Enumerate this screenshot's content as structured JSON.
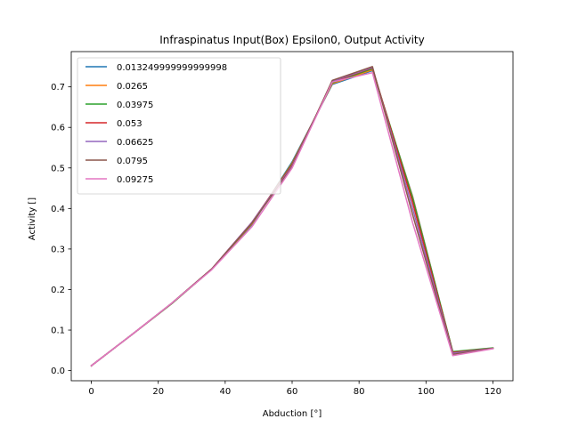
{
  "chart_data": {
    "type": "line",
    "title": "Infraspinatus Input(Box) Epsilon0, Output Activity",
    "xlabel": "Abduction [°]",
    "ylabel": "Activity []",
    "xlim": [
      -6,
      126
    ],
    "ylim": [
      -0.025,
      0.787
    ],
    "xticks": [
      0,
      20,
      40,
      60,
      80,
      100,
      120
    ],
    "yticks": [
      0.0,
      0.1,
      0.2,
      0.3,
      0.4,
      0.5,
      0.6,
      0.7
    ],
    "xtick_labels": [
      "0",
      "20",
      "40",
      "60",
      "80",
      "100",
      "120"
    ],
    "ytick_labels": [
      "0.0",
      "0.1",
      "0.2",
      "0.3",
      "0.4",
      "0.5",
      "0.6",
      "0.7"
    ],
    "grid": false,
    "legend_position": "top-left",
    "x": [
      0,
      12,
      24,
      36,
      48,
      60,
      72,
      84,
      96,
      108,
      120
    ],
    "series": [
      {
        "name": "0.013249999999999998",
        "color": "#1f77b4",
        "values": [
          0.012,
          0.088,
          0.165,
          0.25,
          0.36,
          0.515,
          0.706,
          0.74,
          0.43,
          0.046,
          0.055
        ]
      },
      {
        "name": "0.0265",
        "color": "#ff7f0e",
        "values": [
          0.012,
          0.088,
          0.165,
          0.25,
          0.362,
          0.512,
          0.708,
          0.742,
          0.428,
          0.046,
          0.055
        ]
      },
      {
        "name": "0.03975",
        "color": "#2ca02c",
        "values": [
          0.012,
          0.088,
          0.165,
          0.25,
          0.364,
          0.51,
          0.71,
          0.745,
          0.425,
          0.047,
          0.056
        ]
      },
      {
        "name": "0.053",
        "color": "#d62728",
        "values": [
          0.012,
          0.088,
          0.166,
          0.251,
          0.366,
          0.508,
          0.712,
          0.747,
          0.415,
          0.045,
          0.055
        ]
      },
      {
        "name": "0.06625",
        "color": "#9467bd",
        "values": [
          0.012,
          0.088,
          0.166,
          0.251,
          0.366,
          0.505,
          0.714,
          0.748,
          0.4,
          0.043,
          0.055
        ]
      },
      {
        "name": "0.0795",
        "color": "#8c564b",
        "values": [
          0.012,
          0.088,
          0.166,
          0.251,
          0.364,
          0.502,
          0.716,
          0.75,
          0.385,
          0.04,
          0.055
        ]
      },
      {
        "name": "0.09275",
        "color": "#e377c2",
        "values": [
          0.012,
          0.088,
          0.166,
          0.249,
          0.355,
          0.5,
          0.712,
          0.735,
          0.365,
          0.037,
          0.054
        ]
      }
    ]
  }
}
